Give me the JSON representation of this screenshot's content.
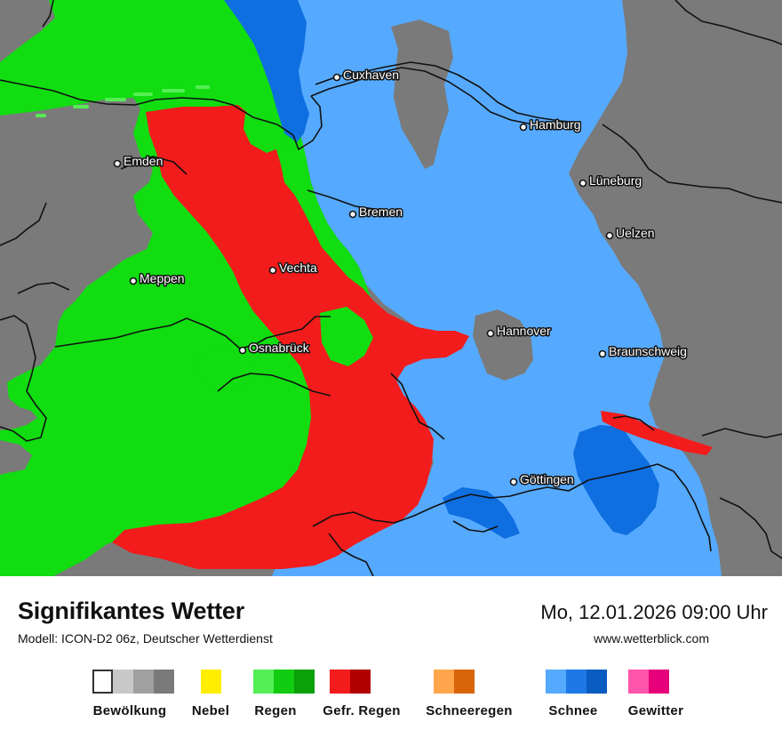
{
  "map": {
    "cities": [
      {
        "id": "cuxhaven",
        "name": "Cuxhaven"
      },
      {
        "id": "hamburg",
        "name": "Hamburg"
      },
      {
        "id": "emden",
        "name": "Emden"
      },
      {
        "id": "lueneburg",
        "name": "Lüneburg"
      },
      {
        "id": "bremen",
        "name": "Bremen"
      },
      {
        "id": "uelzen",
        "name": "Uelzen"
      },
      {
        "id": "vechta",
        "name": "Vechta"
      },
      {
        "id": "meppen",
        "name": "Meppen"
      },
      {
        "id": "hannover",
        "name": "Hannover"
      },
      {
        "id": "osnabrueck",
        "name": "Osnabrück"
      },
      {
        "id": "braunschweig",
        "name": "Braunschweig"
      },
      {
        "id": "goettingen",
        "name": "Göttingen"
      }
    ],
    "colors": {
      "no_data": "#7a7a7a",
      "rain": "#11dd11",
      "rain_light": "#55ee55",
      "freezing_rain": "#f21c1c",
      "snow": "#55aaff",
      "snow_heavy": "#0f6ee0"
    }
  },
  "footer": {
    "title": "Signifikantes Wetter",
    "subtitle": "Modell: ICON-D2 06z, Deutscher Wetterdienst",
    "datetime": "Mo, 12.01.2026 09:00 Uhr",
    "website": "www.wetterblick.com"
  },
  "legend": [
    {
      "id": "bewoelkung",
      "label": "Bewölkung",
      "colors": [
        "#ffffff",
        "#c8c8c8",
        "#a0a0a0",
        "#7a7a7a"
      ]
    },
    {
      "id": "nebel",
      "label": "Nebel",
      "colors": [
        "#ffee00"
      ]
    },
    {
      "id": "regen",
      "label": "Regen",
      "colors": [
        "#55ee55",
        "#11cc11",
        "#0aa00a"
      ]
    },
    {
      "id": "gefr-regen",
      "label": "Gefr. Regen",
      "colors": [
        "#f21c1c",
        "#b00000"
      ]
    },
    {
      "id": "schneeregen",
      "label": "Schneeregen",
      "colors": [
        "#ffa64d",
        "#d9650b"
      ]
    },
    {
      "id": "schnee",
      "label": "Schnee",
      "colors": [
        "#55aaff",
        "#1e78e6",
        "#0a5cc0"
      ]
    },
    {
      "id": "gewitter",
      "label": "Gewitter",
      "colors": [
        "#ff55aa",
        "#e6007a"
      ]
    }
  ]
}
